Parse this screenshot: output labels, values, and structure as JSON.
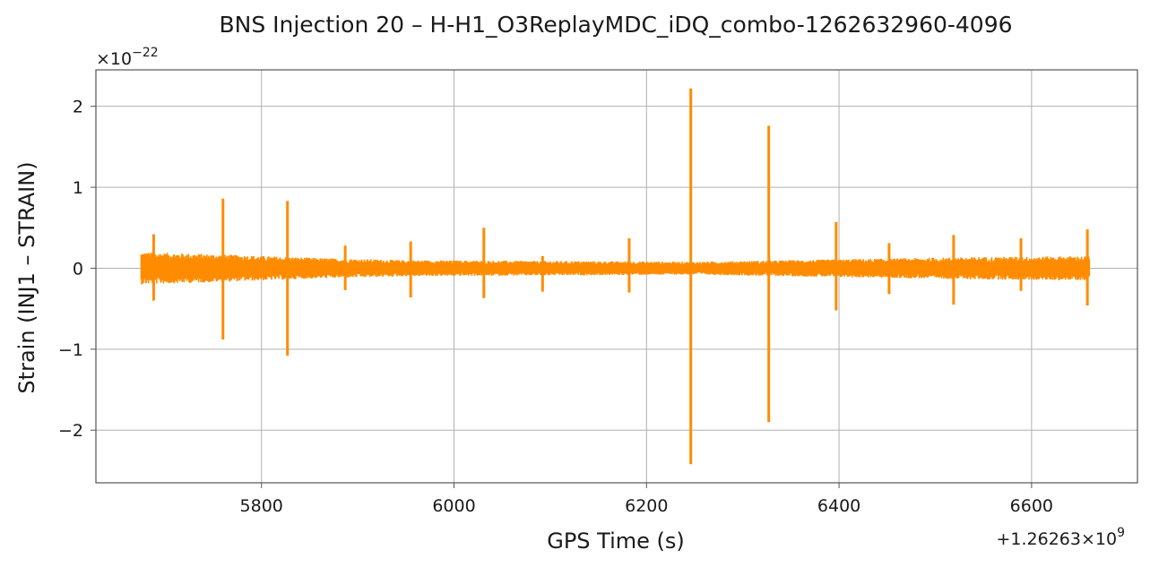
{
  "chart_data": {
    "type": "line",
    "title": "BNS Injection 20 – H-H1_O3ReplayMDC_iDQ_combo-1262632960-4096",
    "xlabel": "GPS Time (s)",
    "ylabel": "Strain (INJ1 – STRAIN)",
    "x_offset_label": "+1.26263×10",
    "x_offset_exp": "9",
    "y_scale_label": "×10",
    "y_scale_exp": "−22",
    "xlim": [
      5628,
      6710
    ],
    "ylim": [
      -2.65,
      2.45
    ],
    "x_ticks": [
      {
        "value": 5800,
        "label": "5800"
      },
      {
        "value": 6000,
        "label": "6000"
      },
      {
        "value": 6200,
        "label": "6200"
      },
      {
        "value": 6400,
        "label": "6400"
      },
      {
        "value": 6600,
        "label": "6600"
      }
    ],
    "y_ticks": [
      {
        "value": -2,
        "label": "−2"
      },
      {
        "value": -1,
        "label": "−1"
      },
      {
        "value": 0,
        "label": "0"
      },
      {
        "value": 1,
        "label": "1"
      },
      {
        "value": 2,
        "label": "2"
      }
    ],
    "grid": true,
    "series": [
      {
        "color": "#ff8c00",
        "x_range": [
          5675,
          6660
        ],
        "noise_envelope": [
          {
            "x": 5675,
            "amp": 0.2
          },
          {
            "x": 5760,
            "amp": 0.17
          },
          {
            "x": 5850,
            "amp": 0.13
          },
          {
            "x": 5950,
            "amp": 0.1
          },
          {
            "x": 6100,
            "amp": 0.09
          },
          {
            "x": 6250,
            "amp": 0.08
          },
          {
            "x": 6350,
            "amp": 0.1
          },
          {
            "x": 6450,
            "amp": 0.12
          },
          {
            "x": 6550,
            "amp": 0.14
          },
          {
            "x": 6660,
            "amp": 0.15
          }
        ],
        "spikes": [
          {
            "x": 5688,
            "max": 0.42,
            "min": -0.4
          },
          {
            "x": 5760,
            "max": 0.86,
            "min": -0.88
          },
          {
            "x": 5827,
            "max": 0.83,
            "min": -1.08
          },
          {
            "x": 5887,
            "max": 0.28,
            "min": -0.27
          },
          {
            "x": 5955,
            "max": 0.33,
            "min": -0.36
          },
          {
            "x": 6031,
            "max": 0.5,
            "min": -0.37
          },
          {
            "x": 6092,
            "max": 0.15,
            "min": -0.29
          },
          {
            "x": 6182,
            "max": 0.37,
            "min": -0.3
          },
          {
            "x": 6246,
            "max": 2.22,
            "min": -2.42
          },
          {
            "x": 6327,
            "max": 1.76,
            "min": -1.9
          },
          {
            "x": 6397,
            "max": 0.57,
            "min": -0.52
          },
          {
            "x": 6452,
            "max": 0.31,
            "min": -0.32
          },
          {
            "x": 6519,
            "max": 0.41,
            "min": -0.45
          },
          {
            "x": 6589,
            "max": 0.37,
            "min": -0.28
          },
          {
            "x": 6658,
            "max": 0.48,
            "min": -0.46
          }
        ]
      }
    ]
  }
}
